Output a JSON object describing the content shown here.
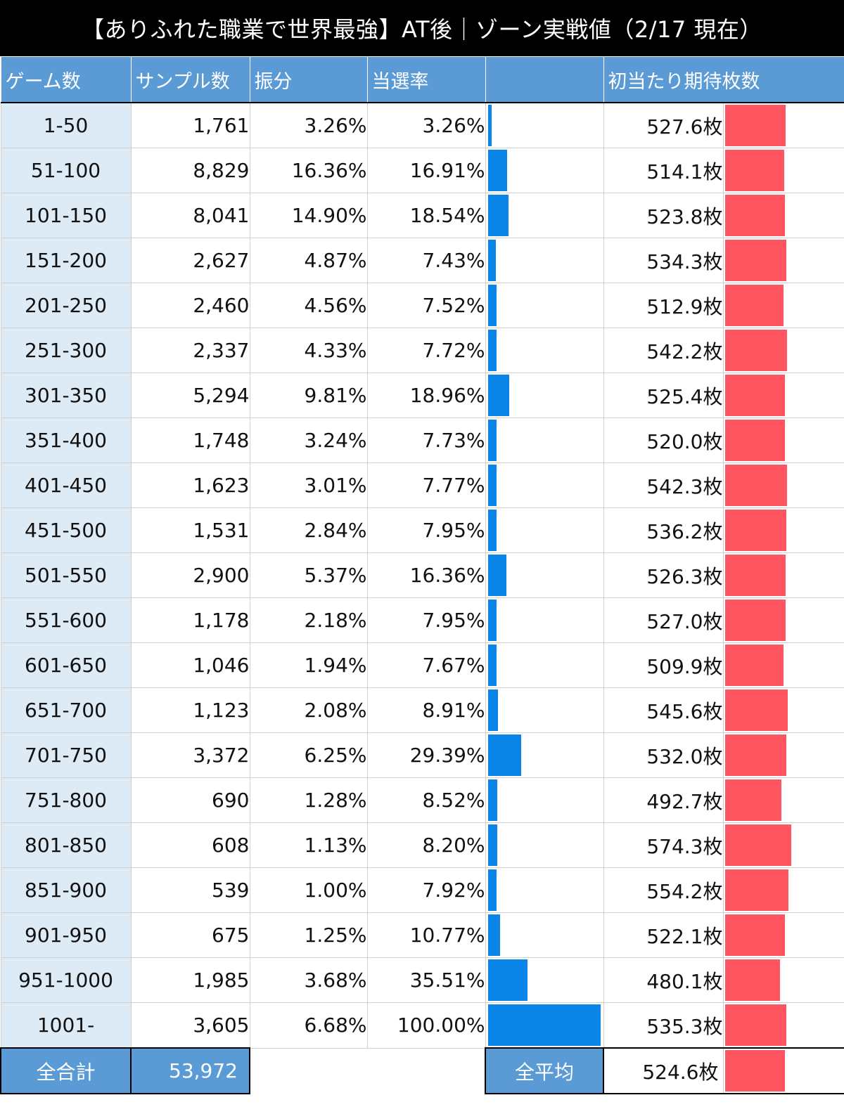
{
  "title": "【ありふれた職業で世界最強】AT後｜ゾーン実戦値（2/17 現在）",
  "headers": {
    "game": "ゲーム数",
    "samples": "サンプル数",
    "share": "振分",
    "rate": "当選率",
    "rate_bar": "",
    "expected": "初当たり期待枚数",
    "expected_bar": ""
  },
  "colors": {
    "header_bg": "#5b9bd5",
    "first_col_bg": "#ddebf7",
    "rate_bar": "#0a84e6",
    "expected_bar": "#ff5561",
    "title_bg": "#000000"
  },
  "chart_data": {
    "type": "table",
    "bar_columns": {
      "rate_bar_max_pct": 100,
      "expected_bar_max": 574.3
    },
    "rows": [
      {
        "game": "1-50",
        "samples": "1,761",
        "share": "3.26%",
        "rate": "3.26%",
        "rate_value": 3.26,
        "expected": "527.6枚",
        "expected_value": 527.6
      },
      {
        "game": "51-100",
        "samples": "8,829",
        "share": "16.36%",
        "rate": "16.91%",
        "rate_value": 16.91,
        "expected": "514.1枚",
        "expected_value": 514.1
      },
      {
        "game": "101-150",
        "samples": "8,041",
        "share": "14.90%",
        "rate": "18.54%",
        "rate_value": 18.54,
        "expected": "523.8枚",
        "expected_value": 523.8
      },
      {
        "game": "151-200",
        "samples": "2,627",
        "share": "4.87%",
        "rate": "7.43%",
        "rate_value": 7.43,
        "expected": "534.3枚",
        "expected_value": 534.3
      },
      {
        "game": "201-250",
        "samples": "2,460",
        "share": "4.56%",
        "rate": "7.52%",
        "rate_value": 7.52,
        "expected": "512.9枚",
        "expected_value": 512.9
      },
      {
        "game": "251-300",
        "samples": "2,337",
        "share": "4.33%",
        "rate": "7.72%",
        "rate_value": 7.72,
        "expected": "542.2枚",
        "expected_value": 542.2
      },
      {
        "game": "301-350",
        "samples": "5,294",
        "share": "9.81%",
        "rate": "18.96%",
        "rate_value": 18.96,
        "expected": "525.4枚",
        "expected_value": 525.4
      },
      {
        "game": "351-400",
        "samples": "1,748",
        "share": "3.24%",
        "rate": "7.73%",
        "rate_value": 7.73,
        "expected": "520.0枚",
        "expected_value": 520.0
      },
      {
        "game": "401-450",
        "samples": "1,623",
        "share": "3.01%",
        "rate": "7.77%",
        "rate_value": 7.77,
        "expected": "542.3枚",
        "expected_value": 542.3
      },
      {
        "game": "451-500",
        "samples": "1,531",
        "share": "2.84%",
        "rate": "7.95%",
        "rate_value": 7.95,
        "expected": "536.2枚",
        "expected_value": 536.2
      },
      {
        "game": "501-550",
        "samples": "2,900",
        "share": "5.37%",
        "rate": "16.36%",
        "rate_value": 16.36,
        "expected": "526.3枚",
        "expected_value": 526.3
      },
      {
        "game": "551-600",
        "samples": "1,178",
        "share": "2.18%",
        "rate": "7.95%",
        "rate_value": 7.95,
        "expected": "527.0枚",
        "expected_value": 527.0
      },
      {
        "game": "601-650",
        "samples": "1,046",
        "share": "1.94%",
        "rate": "7.67%",
        "rate_value": 7.67,
        "expected": "509.9枚",
        "expected_value": 509.9
      },
      {
        "game": "651-700",
        "samples": "1,123",
        "share": "2.08%",
        "rate": "8.91%",
        "rate_value": 8.91,
        "expected": "545.6枚",
        "expected_value": 545.6
      },
      {
        "game": "701-750",
        "samples": "3,372",
        "share": "6.25%",
        "rate": "29.39%",
        "rate_value": 29.39,
        "expected": "532.0枚",
        "expected_value": 532.0
      },
      {
        "game": "751-800",
        "samples": "690",
        "share": "1.28%",
        "rate": "8.52%",
        "rate_value": 8.52,
        "expected": "492.7枚",
        "expected_value": 492.7
      },
      {
        "game": "801-850",
        "samples": "608",
        "share": "1.13%",
        "rate": "8.20%",
        "rate_value": 8.2,
        "expected": "574.3枚",
        "expected_value": 574.3
      },
      {
        "game": "851-900",
        "samples": "539",
        "share": "1.00%",
        "rate": "7.92%",
        "rate_value": 7.92,
        "expected": "554.2枚",
        "expected_value": 554.2
      },
      {
        "game": "901-950",
        "samples": "675",
        "share": "1.25%",
        "rate": "10.77%",
        "rate_value": 10.77,
        "expected": "522.1枚",
        "expected_value": 522.1
      },
      {
        "game": "951-1000",
        "samples": "1,985",
        "share": "3.68%",
        "rate": "35.51%",
        "rate_value": 35.51,
        "expected": "480.1枚",
        "expected_value": 480.1
      },
      {
        "game": "1001-",
        "samples": "3,605",
        "share": "6.68%",
        "rate": "100.00%",
        "rate_value": 100.0,
        "expected": "535.3枚",
        "expected_value": 535.3
      }
    ]
  },
  "footer": {
    "total_label": "全合計",
    "total_samples": "53,972",
    "avg_label": "全平均",
    "avg_expected": "524.6枚",
    "avg_expected_value": 524.6
  }
}
